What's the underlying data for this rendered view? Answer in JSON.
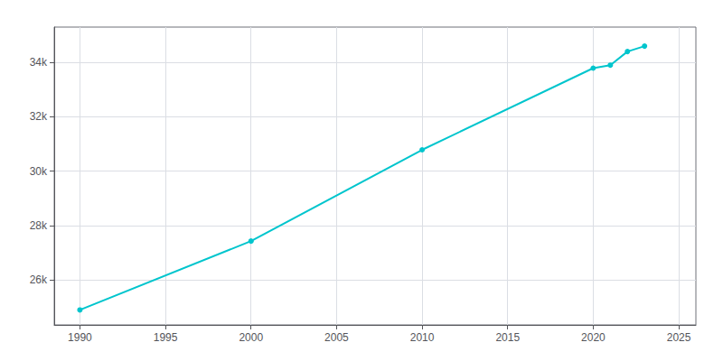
{
  "chart_data": {
    "type": "line",
    "x": [
      1990,
      2000,
      2010,
      2020,
      2021,
      2022,
      2023
    ],
    "values": [
      24900,
      27431,
      30787,
      33790,
      33900,
      34400,
      34600
    ],
    "color": "#00c5cd",
    "marker": "circle",
    "xlim": [
      1988.5,
      2026
    ],
    "ylim": [
      24350,
      35300
    ],
    "xticks": [
      1990,
      1995,
      2000,
      2005,
      2010,
      2015,
      2020,
      2025
    ],
    "yticks": [
      {
        "value": 26000,
        "label": "26k"
      },
      {
        "value": 28000,
        "label": "28k"
      },
      {
        "value": 30000,
        "label": "30k"
      },
      {
        "value": 32000,
        "label": "32k"
      },
      {
        "value": 34000,
        "label": "34k"
      }
    ],
    "grid": true
  }
}
